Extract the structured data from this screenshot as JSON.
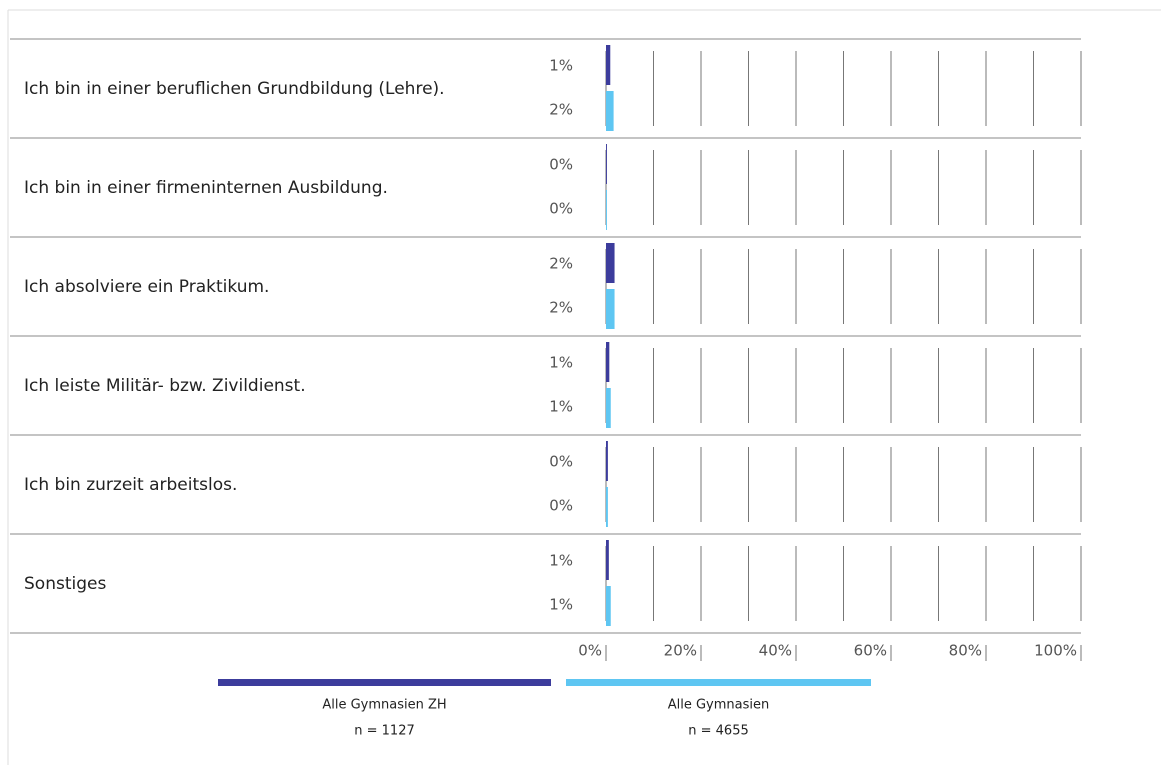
{
  "chart_data": {
    "type": "bar",
    "orientation": "horizontal",
    "categories": [
      "Ich bin in einer beruflichen Grundbildung (Lehre).",
      "Ich bin in einer firmeninternen Ausbildung.",
      "Ich absolviere ein Praktikum.",
      "Ich leiste Militär- bzw.  Zivildienst.",
      "Ich bin zurzeit arbeitslos.",
      "Sonstiges"
    ],
    "series": [
      {
        "name": "Alle Gymnasien ZH",
        "note": "n = 1127",
        "color": "#3c3c9c",
        "values": [
          0.9,
          0.2,
          1.8,
          0.7,
          0.4,
          0.6
        ],
        "value_labels": [
          "1%",
          "0%",
          "2%",
          "1%",
          "0%",
          "1%"
        ]
      },
      {
        "name": "Alle Gymnasien",
        "note": "n = 4655",
        "color": "#5ec6f2",
        "values": [
          1.6,
          0.2,
          1.8,
          1.0,
          0.4,
          1.0
        ],
        "value_labels": [
          "2%",
          "0%",
          "2%",
          "1%",
          "0%",
          "1%"
        ]
      }
    ],
    "xlim": [
      0,
      100
    ],
    "xticks": [
      {
        "value": 0,
        "label": "0%"
      },
      {
        "value": 20,
        "label": "20%"
      },
      {
        "value": 40,
        "label": "40%"
      },
      {
        "value": 60,
        "label": "60%"
      },
      {
        "value": 80,
        "label": "80%"
      },
      {
        "value": 100,
        "label": "100%"
      }
    ],
    "xminorticks": [
      10,
      30,
      50,
      70,
      90
    ],
    "grid": true
  }
}
